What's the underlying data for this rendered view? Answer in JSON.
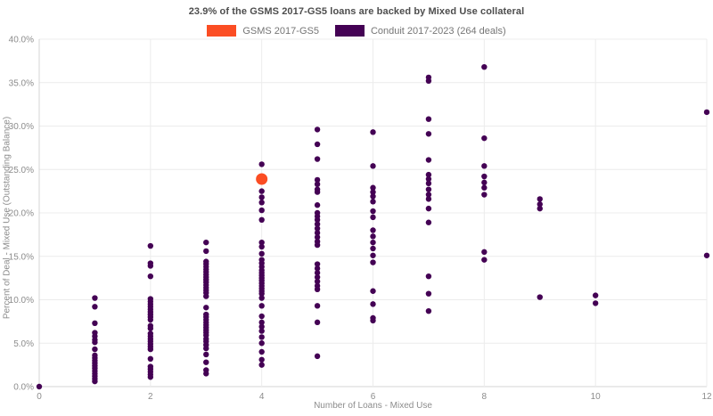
{
  "title": "23.9% of the GSMS 2017-GS5 loans are backed by Mixed Use collateral",
  "legend": {
    "items": [
      {
        "label": "GSMS 2017-GS5",
        "color": "#fb4d23"
      },
      {
        "label": "Conduit 2017-2023 (264 deals)",
        "color": "#440154"
      }
    ]
  },
  "colors": {
    "accent_orange": "#fb4d23",
    "accent_purple": "#440154",
    "gridline": "#ececec",
    "axis_line": "#d4d4d4",
    "tick_label": "#8c8c8c"
  },
  "chart_data": {
    "type": "scatter",
    "title": "23.9% of the GSMS 2017-GS5 loans are backed by Mixed Use collateral",
    "xlabel": "Number of Loans - Mixed Use",
    "ylabel": "Percent of Deal - Mixed Use (Outstanding Balance)",
    "xlim": [
      0,
      12
    ],
    "ylim": [
      0,
      40
    ],
    "x_ticks": [
      0,
      2,
      4,
      6,
      8,
      10,
      12
    ],
    "y_ticks": [
      0,
      5,
      10,
      15,
      20,
      25,
      30,
      35,
      40
    ],
    "y_tick_labels": [
      "0.0%",
      "5.0%",
      "10.0%",
      "15.0%",
      "20.0%",
      "25.0%",
      "30.0%",
      "35.0%",
      "40.0%"
    ],
    "grid": true,
    "legend_position": "top-center",
    "series": [
      {
        "name": "Conduit 2017-2023 (264 deals)",
        "color": "#440154",
        "marker_radius": 3.2,
        "points": [
          [
            0,
            0.0
          ],
          [
            1,
            10.2
          ],
          [
            1,
            9.2
          ],
          [
            1,
            7.3
          ],
          [
            1,
            6.2
          ],
          [
            1,
            5.8
          ],
          [
            1,
            5.4
          ],
          [
            1,
            5.1
          ],
          [
            1,
            4.3
          ],
          [
            1,
            3.6
          ],
          [
            1,
            3.3
          ],
          [
            1,
            3.0
          ],
          [
            1,
            2.7
          ],
          [
            1,
            2.4
          ],
          [
            1,
            2.1
          ],
          [
            1,
            1.8
          ],
          [
            1,
            1.5
          ],
          [
            1,
            1.2
          ],
          [
            1,
            0.9
          ],
          [
            1,
            0.6
          ],
          [
            2,
            16.2
          ],
          [
            2,
            14.2
          ],
          [
            2,
            13.9
          ],
          [
            2,
            12.7
          ],
          [
            2,
            10.1
          ],
          [
            2,
            9.8
          ],
          [
            2,
            9.5
          ],
          [
            2,
            9.2
          ],
          [
            2,
            8.9
          ],
          [
            2,
            8.6
          ],
          [
            2,
            8.3
          ],
          [
            2,
            8.0
          ],
          [
            2,
            7.7
          ],
          [
            2,
            7.0
          ],
          [
            2,
            6.7
          ],
          [
            2,
            6.1
          ],
          [
            2,
            5.8
          ],
          [
            2,
            5.5
          ],
          [
            2,
            5.2
          ],
          [
            2,
            4.9
          ],
          [
            2,
            4.6
          ],
          [
            2,
            4.3
          ],
          [
            2,
            3.2
          ],
          [
            2,
            2.3
          ],
          [
            2,
            2.0
          ],
          [
            2,
            1.7
          ],
          [
            2,
            1.4
          ],
          [
            2,
            1.1
          ],
          [
            3,
            16.6
          ],
          [
            3,
            15.6
          ],
          [
            3,
            14.4
          ],
          [
            3,
            14.1
          ],
          [
            3,
            13.8
          ],
          [
            3,
            13.5
          ],
          [
            3,
            13.2
          ],
          [
            3,
            12.9
          ],
          [
            3,
            12.6
          ],
          [
            3,
            12.3
          ],
          [
            3,
            12.0
          ],
          [
            3,
            11.7
          ],
          [
            3,
            11.4
          ],
          [
            3,
            11.1
          ],
          [
            3,
            10.8
          ],
          [
            3,
            10.4
          ],
          [
            3,
            9.1
          ],
          [
            3,
            8.3
          ],
          [
            3,
            8.0
          ],
          [
            3,
            7.7
          ],
          [
            3,
            7.4
          ],
          [
            3,
            7.1
          ],
          [
            3,
            6.8
          ],
          [
            3,
            6.5
          ],
          [
            3,
            6.2
          ],
          [
            3,
            5.9
          ],
          [
            3,
            5.5
          ],
          [
            3,
            5.2
          ],
          [
            3,
            4.8
          ],
          [
            3,
            4.4
          ],
          [
            3,
            3.7
          ],
          [
            3,
            2.8
          ],
          [
            3,
            1.9
          ],
          [
            3,
            1.5
          ],
          [
            4,
            25.6
          ],
          [
            4,
            22.5
          ],
          [
            4,
            21.8
          ],
          [
            4,
            21.2
          ],
          [
            4,
            20.3
          ],
          [
            4,
            19.2
          ],
          [
            4,
            16.6
          ],
          [
            4,
            16.1
          ],
          [
            4,
            15.3
          ],
          [
            4,
            14.6
          ],
          [
            4,
            14.2
          ],
          [
            4,
            13.8
          ],
          [
            4,
            13.4
          ],
          [
            4,
            13.1
          ],
          [
            4,
            12.8
          ],
          [
            4,
            12.5
          ],
          [
            4,
            12.2
          ],
          [
            4,
            11.9
          ],
          [
            4,
            11.6
          ],
          [
            4,
            11.3
          ],
          [
            4,
            11.0
          ],
          [
            4,
            10.7
          ],
          [
            4,
            10.2
          ],
          [
            4,
            9.3
          ],
          [
            4,
            8.1
          ],
          [
            4,
            7.4
          ],
          [
            4,
            6.9
          ],
          [
            4,
            6.4
          ],
          [
            4,
            5.7
          ],
          [
            4,
            5.0
          ],
          [
            4,
            4.0
          ],
          [
            4,
            3.1
          ],
          [
            4,
            2.5
          ],
          [
            5,
            29.6
          ],
          [
            5,
            27.9
          ],
          [
            5,
            26.2
          ],
          [
            5,
            23.8
          ],
          [
            5,
            23.3
          ],
          [
            5,
            22.7
          ],
          [
            5,
            22.4
          ],
          [
            5,
            20.9
          ],
          [
            5,
            20.0
          ],
          [
            5,
            19.6
          ],
          [
            5,
            19.2
          ],
          [
            5,
            18.7
          ],
          [
            5,
            18.2
          ],
          [
            5,
            17.7
          ],
          [
            5,
            17.2
          ],
          [
            5,
            16.7
          ],
          [
            5,
            16.3
          ],
          [
            5,
            14.1
          ],
          [
            5,
            13.6
          ],
          [
            5,
            13.1
          ],
          [
            5,
            12.6
          ],
          [
            5,
            12.1
          ],
          [
            5,
            11.6
          ],
          [
            5,
            11.2
          ],
          [
            5,
            9.3
          ],
          [
            5,
            7.4
          ],
          [
            5,
            3.5
          ],
          [
            6,
            29.3
          ],
          [
            6,
            25.4
          ],
          [
            6,
            22.9
          ],
          [
            6,
            22.4
          ],
          [
            6,
            21.9
          ],
          [
            6,
            21.3
          ],
          [
            6,
            20.2
          ],
          [
            6,
            19.5
          ],
          [
            6,
            18.0
          ],
          [
            6,
            17.3
          ],
          [
            6,
            16.6
          ],
          [
            6,
            15.9
          ],
          [
            6,
            15.1
          ],
          [
            6,
            14.3
          ],
          [
            6,
            11.0
          ],
          [
            6,
            9.5
          ],
          [
            6,
            7.9
          ],
          [
            6,
            7.6
          ],
          [
            7,
            35.6
          ],
          [
            7,
            35.2
          ],
          [
            7,
            30.8
          ],
          [
            7,
            29.1
          ],
          [
            7,
            26.1
          ],
          [
            7,
            24.4
          ],
          [
            7,
            23.9
          ],
          [
            7,
            23.4
          ],
          [
            7,
            22.7
          ],
          [
            7,
            22.1
          ],
          [
            7,
            21.6
          ],
          [
            7,
            20.5
          ],
          [
            7,
            18.9
          ],
          [
            7,
            12.7
          ],
          [
            7,
            10.7
          ],
          [
            7,
            8.7
          ],
          [
            8,
            36.8
          ],
          [
            8,
            28.6
          ],
          [
            8,
            25.4
          ],
          [
            8,
            24.2
          ],
          [
            8,
            23.5
          ],
          [
            8,
            22.9
          ],
          [
            8,
            22.1
          ],
          [
            8,
            15.5
          ],
          [
            8,
            14.6
          ],
          [
            9,
            21.6
          ],
          [
            9,
            21.0
          ],
          [
            9,
            20.5
          ],
          [
            9,
            10.3
          ],
          [
            10,
            10.5
          ],
          [
            10,
            9.6
          ],
          [
            12,
            31.6
          ],
          [
            12,
            15.1
          ]
        ]
      },
      {
        "name": "GSMS 2017-GS5",
        "color": "#fb4d23",
        "marker_radius": 6.5,
        "points": [
          [
            4,
            23.9
          ]
        ]
      }
    ]
  }
}
